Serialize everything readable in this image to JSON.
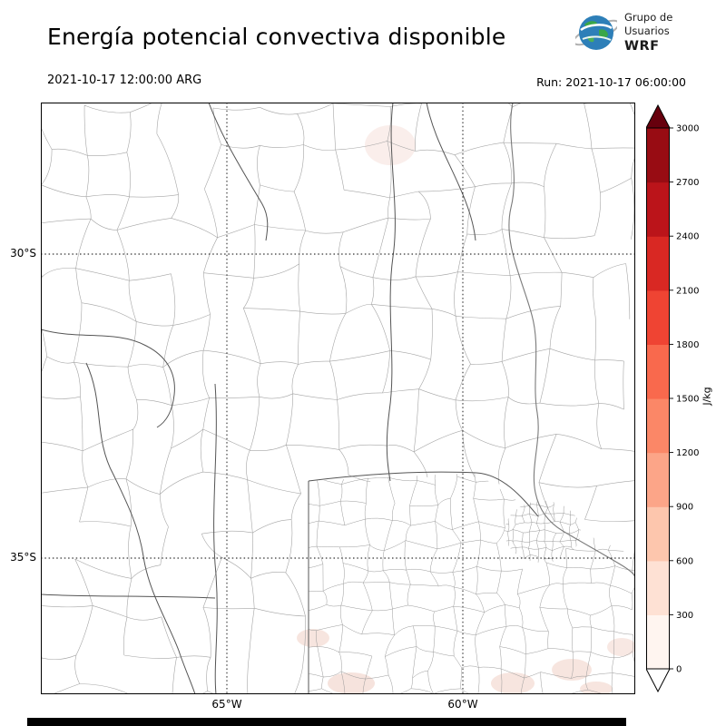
{
  "header": {
    "title": "Energía potencial convectiva disponible",
    "valid_time": "2021-10-17 12:00:00 ARG",
    "run_label": "Run: 2021-10-17 06:00:00",
    "logo": {
      "line1": "Grupo de",
      "line2": "Usuarios",
      "line3": "WRF"
    }
  },
  "map": {
    "lat_labels": [
      "30°S",
      "35°S"
    ],
    "lon_labels": [
      "65°W",
      "60°W"
    ]
  },
  "colorbar": {
    "unit": "J/kg",
    "ticks": [
      0,
      300,
      600,
      900,
      1200,
      1500,
      1800,
      2100,
      2400,
      2700,
      3000
    ],
    "colors_low_to_high": [
      "#fff5f0",
      "#fee1d4",
      "#fdc6ad",
      "#fca588",
      "#fb8767",
      "#f9694d",
      "#ef4433",
      "#d92823",
      "#bb141a",
      "#980c13"
    ],
    "extend_under_color": "#ffffff",
    "extend_over_color": "#67000d"
  }
}
